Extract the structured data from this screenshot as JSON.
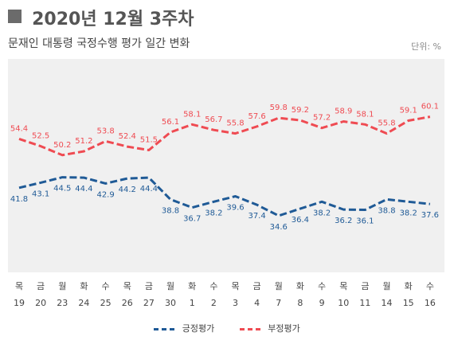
{
  "header": {
    "title": "2020년 12월 3주차",
    "subtitle": "문재인 대통령 국정수행 평가 일간 변화",
    "unit": "단위: %"
  },
  "colors": {
    "positive": "#1f5a96",
    "negative": "#ef4b52",
    "plot_bg": "#f0f0f0"
  },
  "chart_data": {
    "type": "line",
    "title": "2020년 12월 3주차",
    "subtitle": "문재인 대통령 국정수행 평가 일간 변화",
    "unit": "단위: %",
    "categories": [
      {
        "day": "목",
        "date": "19"
      },
      {
        "day": "금",
        "date": "20"
      },
      {
        "day": "월",
        "date": "23"
      },
      {
        "day": "화",
        "date": "24"
      },
      {
        "day": "수",
        "date": "25"
      },
      {
        "day": "목",
        "date": "26"
      },
      {
        "day": "금",
        "date": "27"
      },
      {
        "day": "월",
        "date": "30"
      },
      {
        "day": "화",
        "date": "1"
      },
      {
        "day": "수",
        "date": "2"
      },
      {
        "day": "목",
        "date": "3"
      },
      {
        "day": "금",
        "date": "4"
      },
      {
        "day": "월",
        "date": "7"
      },
      {
        "day": "화",
        "date": "8"
      },
      {
        "day": "수",
        "date": "9"
      },
      {
        "day": "목",
        "date": "10"
      },
      {
        "day": "금",
        "date": "11"
      },
      {
        "day": "월",
        "date": "14"
      },
      {
        "day": "화",
        "date": "15"
      },
      {
        "day": "수",
        "date": "16"
      }
    ],
    "series": [
      {
        "name": "긍정평가",
        "color": "#1f5a96",
        "values": [
          41.8,
          43.1,
          44.5,
          44.4,
          42.9,
          44.2,
          44.4,
          38.8,
          36.7,
          38.2,
          39.6,
          37.4,
          34.6,
          36.4,
          38.2,
          36.2,
          36.1,
          38.8,
          38.2,
          37.6
        ]
      },
      {
        "name": "부정평가",
        "color": "#ef4b52",
        "values": [
          54.4,
          52.5,
          50.2,
          51.2,
          53.8,
          52.4,
          51.5,
          56.1,
          58.1,
          56.7,
          55.8,
          57.6,
          59.8,
          59.2,
          57.2,
          58.9,
          58.1,
          55.8,
          59.1,
          60.1
        ]
      }
    ],
    "ylim": [
      20,
      75
    ],
    "grid": false,
    "legend": "bottom-center",
    "line_style": "dashed"
  }
}
